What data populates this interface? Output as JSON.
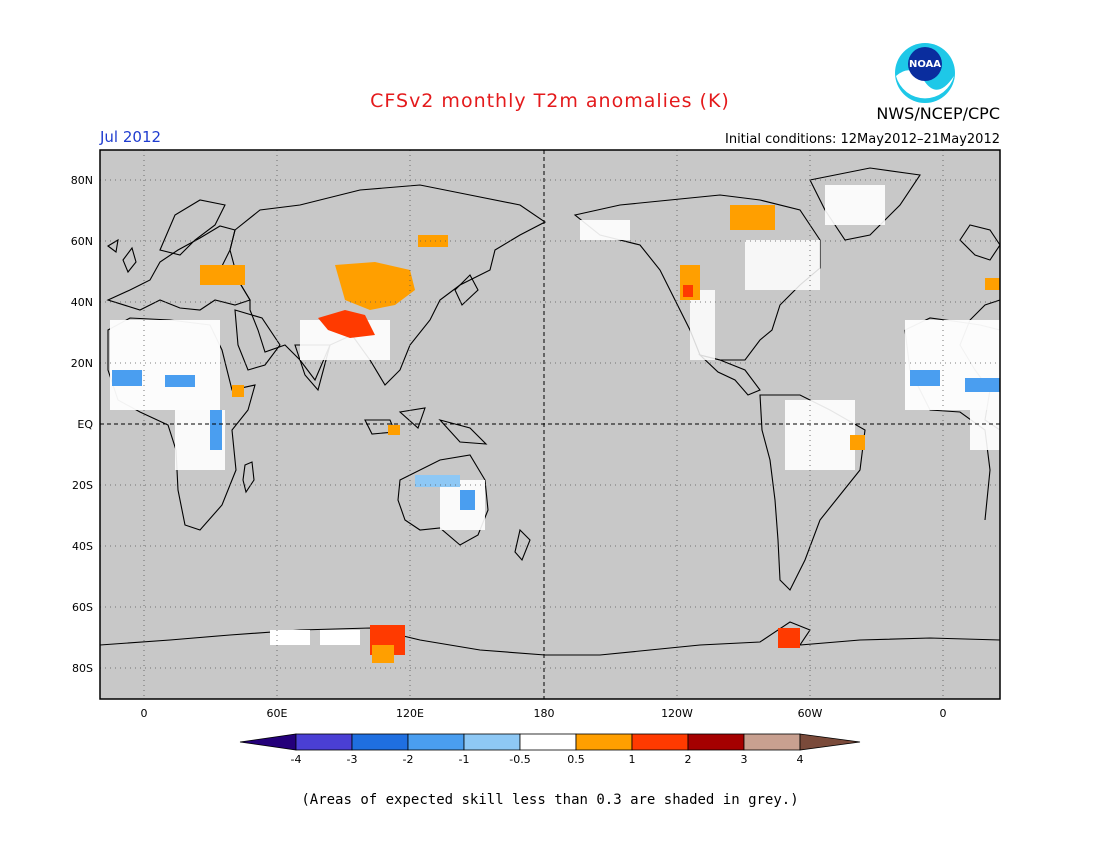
{
  "header": {
    "title": "CFSv2 monthly T2m anomalies (K)",
    "month": "Jul 2012",
    "agency": "NWS/NCEP/CPC",
    "initial_conditions": "Initial conditions: 12May2012–21May2012",
    "logo_text": "NOAA"
  },
  "map": {
    "background_color": "#c8c8c8",
    "lat_labels": [
      "80N",
      "60N",
      "40N",
      "20N",
      "EQ",
      "20S",
      "40S",
      "60S",
      "80S"
    ],
    "lon_labels": [
      "0",
      "60E",
      "120E",
      "180",
      "120W",
      "60W",
      "0"
    ]
  },
  "colorbar": {
    "labels": [
      "-4",
      "-3",
      "-2",
      "-1",
      "-0.5",
      "0.5",
      "1",
      "2",
      "3",
      "4"
    ],
    "colors": [
      "#24007a",
      "#4a3fd4",
      "#1f6fe0",
      "#4a9ef0",
      "#8ec8f5",
      "#ffffff",
      "#ff9f00",
      "#ff3a00",
      "#a50000",
      "#c8a090",
      "#7a4a3a"
    ]
  },
  "footer": {
    "skill_note": "(Areas of expected skill less than 0.3 are shaded in grey.)"
  }
}
